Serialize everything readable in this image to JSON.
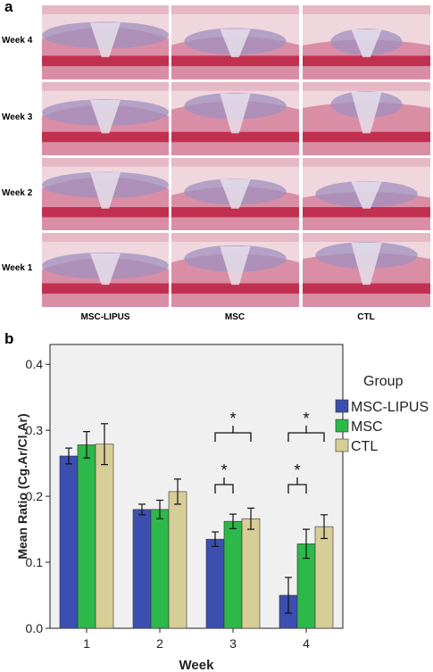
{
  "panel_a": {
    "letter": "a",
    "rows": [
      "Week 4",
      "Week 3",
      "Week 2",
      "Week 1"
    ],
    "columns": [
      "MSC-LIPUS",
      "MSC",
      "CTL"
    ]
  },
  "panel_b": {
    "letter": "b"
  },
  "chart_data": {
    "type": "bar",
    "categories": [
      "1",
      "2",
      "3",
      "4"
    ],
    "xlabel": "Week",
    "ylabel": "Mean Ratio (Cg.Ar/Cl.Ar)",
    "ylim": [
      0,
      0.43
    ],
    "yticks": [
      "0.0",
      "0.1",
      "0.2",
      "0.3",
      "0.4"
    ],
    "legend_title": "Group",
    "legend_position": "right",
    "grid": false,
    "series": [
      {
        "name": "MSC-LIPUS",
        "color": "#3c4fb0",
        "values": [
          0.261,
          0.18,
          0.135,
          0.05
        ],
        "err": [
          0.012,
          0.008,
          0.011,
          0.027
        ]
      },
      {
        "name": "MSC",
        "color": "#2db84a",
        "values": [
          0.278,
          0.18,
          0.162,
          0.128
        ],
        "err": [
          0.02,
          0.014,
          0.011,
          0.022
        ]
      },
      {
        "name": "CTL",
        "color": "#d6cd97",
        "values": [
          0.279,
          0.207,
          0.166,
          0.154
        ],
        "err": [
          0.031,
          0.019,
          0.016,
          0.018
        ]
      }
    ],
    "annotations": [
      {
        "week": "3",
        "label": "*",
        "compare": [
          "MSC-LIPUS",
          "MSC"
        ]
      },
      {
        "week": "3",
        "label": "*",
        "compare": [
          "MSC-LIPUS",
          "CTL"
        ]
      },
      {
        "week": "4",
        "label": "*",
        "compare": [
          "MSC-LIPUS",
          "MSC"
        ]
      },
      {
        "week": "4",
        "label": "*",
        "compare": [
          "MSC-LIPUS",
          "CTL"
        ]
      }
    ]
  }
}
